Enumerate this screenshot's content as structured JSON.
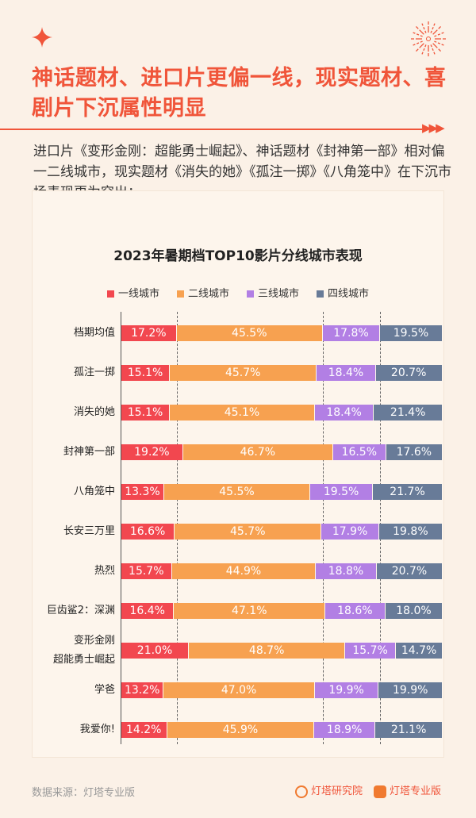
{
  "header": {
    "title": "神话题材、进口片更偏一线，现实题材、喜剧片下沉属性明显",
    "description": "进口片《变形金刚：超能勇士崛起》、神话题材《封神第一部》相对偏一二线城市，现实题材《消失的她》《孤注一掷》《八角笼中》在下沉市场表现更为突出；"
  },
  "chart_data": {
    "type": "bar",
    "orientation": "horizontal",
    "stacked": true,
    "title": "2023年暑期档TOP10影片分线城市表现",
    "legend_position": "top",
    "categories": [
      "档期均值",
      "孤注一掷",
      "消失的她",
      "封神第一部",
      "八角笼中",
      "长安三万里",
      "热烈",
      "巨齿鲨2：深渊",
      "变形金刚\n超能勇士崛起",
      "学爸",
      "我爱你!"
    ],
    "series": [
      {
        "name": "一线城市",
        "color": "#f2474f",
        "values": [
          17.2,
          15.1,
          15.1,
          19.2,
          13.3,
          16.6,
          15.7,
          16.4,
          21.0,
          13.2,
          14.2
        ]
      },
      {
        "name": "二线城市",
        "color": "#f7a150",
        "values": [
          45.5,
          45.7,
          45.1,
          46.7,
          45.5,
          45.7,
          44.9,
          47.1,
          48.7,
          47.0,
          45.9
        ]
      },
      {
        "name": "三线城市",
        "color": "#b27fe4",
        "values": [
          17.8,
          18.4,
          18.4,
          16.5,
          19.5,
          17.9,
          18.8,
          18.6,
          15.7,
          19.9,
          18.9
        ]
      },
      {
        "name": "四线城市",
        "color": "#687b98",
        "values": [
          19.5,
          20.7,
          21.4,
          17.6,
          21.7,
          19.8,
          20.7,
          18.0,
          14.7,
          19.9,
          21.1
        ]
      }
    ],
    "unit": "%",
    "reference_lines": "档期均值 cumulative boundaries (dashed)"
  },
  "footer": {
    "source": "数据来源：灯塔专业版",
    "logo1": "灯塔研究院",
    "logo2": "灯塔专业版"
  },
  "colors": {
    "accent": "#f0553a",
    "background": "#fbf1e7"
  }
}
